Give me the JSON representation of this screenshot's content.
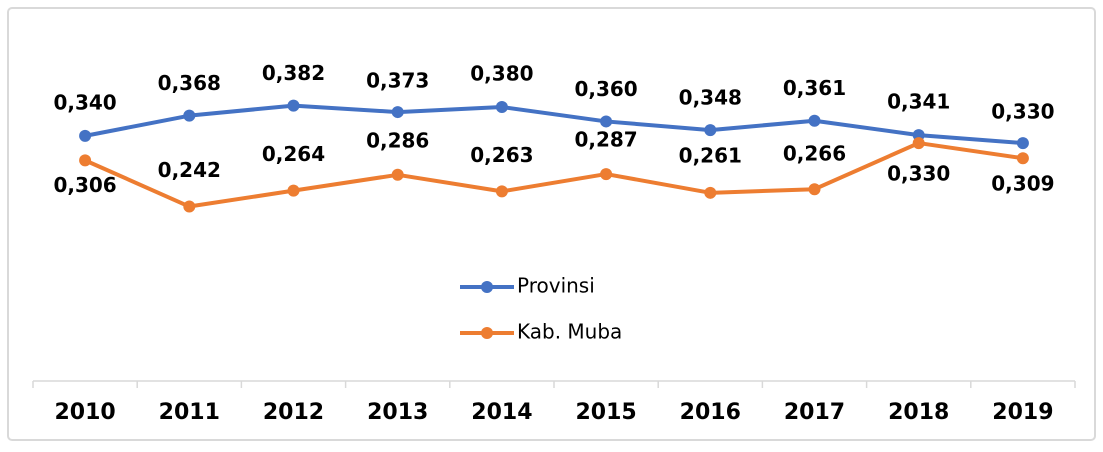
{
  "chart_data": {
    "type": "line",
    "categories": [
      "2010",
      "2011",
      "2012",
      "2013",
      "2014",
      "2015",
      "2016",
      "2017",
      "2018",
      "2019"
    ],
    "series": [
      {
        "name": "Provinsi",
        "color": "#4472c4",
        "values": [
          0.34,
          0.368,
          0.382,
          0.373,
          0.38,
          0.36,
          0.348,
          0.361,
          0.341,
          0.33
        ],
        "value_labels": [
          "0,340",
          "0,368",
          "0,382",
          "0,373",
          "0,380",
          "0,360",
          "0,348",
          "0,361",
          "0,341",
          "0,330"
        ]
      },
      {
        "name": "Kab. Muba",
        "color": "#ed7d31",
        "values": [
          0.306,
          0.242,
          0.264,
          0.286,
          0.263,
          0.287,
          0.261,
          0.266,
          0.33,
          0.309
        ],
        "value_labels": [
          "0,306",
          "0,242",
          "0,264",
          "0,286",
          "0,263",
          "0,287",
          "0,261",
          "0,266",
          "0,330",
          "0,309"
        ]
      }
    ]
  }
}
